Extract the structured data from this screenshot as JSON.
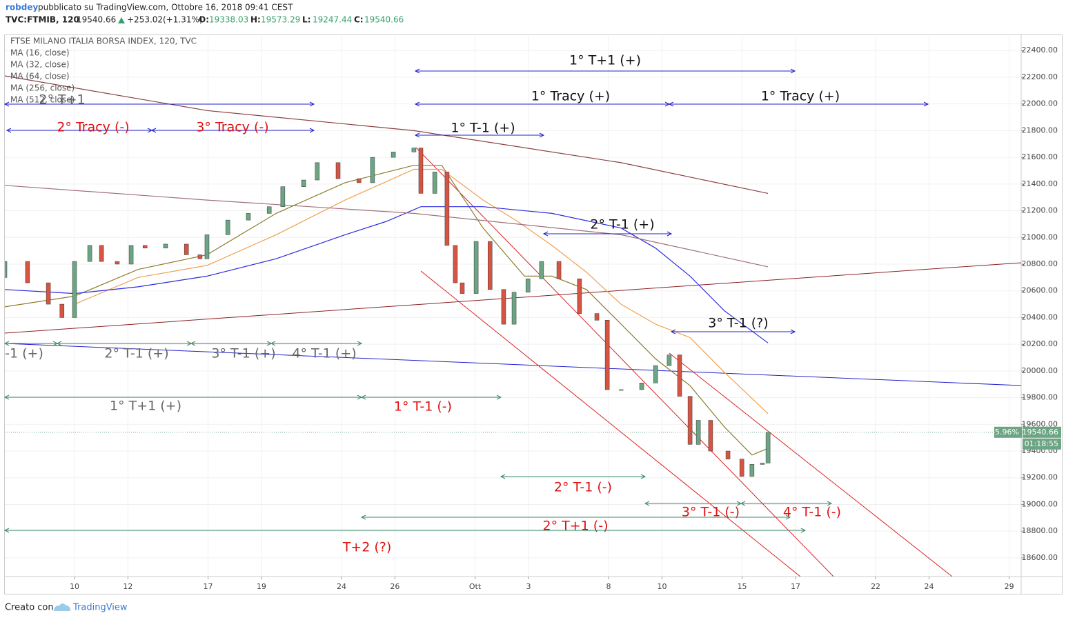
{
  "header": {
    "author": "robdey",
    "published": "pubblicato su TradingView.com, Ottobre 16, 2018 09:41 CEST",
    "symbol": "TVC:FTMIB, 120",
    "last": 19540.66,
    "change": "+253.02",
    "change_pct": "(+1.31%)",
    "ohlc": [
      {
        "label": "O:",
        "value": 19338.03
      },
      {
        "label": "H:",
        "value": 19573.29
      },
      {
        "label": "L:",
        "value": 19247.44
      },
      {
        "label": "C:",
        "value": 19540.66
      }
    ]
  },
  "chart_data": {
    "type": "candlestick",
    "title": "FTSE MILANO ITALIA BORSA INDEX, 120, TVC",
    "up_color": "#6ba583",
    "down_color": "#d75442",
    "xlim": [
      -2.61,
      35.45
    ],
    "ylim": [
      18460,
      22520
    ],
    "xticks": [
      {
        "value": 0,
        "label": "10"
      },
      {
        "value": 2,
        "label": "12"
      },
      {
        "value": 5,
        "label": "17"
      },
      {
        "value": 7,
        "label": "19"
      },
      {
        "value": 10,
        "label": "24"
      },
      {
        "value": 12,
        "label": "26"
      },
      {
        "value": 15,
        "label": "Ott"
      },
      {
        "value": 17,
        "label": "3"
      },
      {
        "value": 20,
        "label": "8"
      },
      {
        "value": 22,
        "label": "10"
      },
      {
        "value": 25,
        "label": "15"
      },
      {
        "value": 27,
        "label": "17"
      },
      {
        "value": 30,
        "label": "22"
      },
      {
        "value": 32,
        "label": "24"
      },
      {
        "value": 35,
        "label": "29"
      }
    ],
    "yticks": [
      {
        "value": 18600,
        "label": "18600.00"
      },
      {
        "value": 18800,
        "label": "18800.00"
      },
      {
        "value": 19000,
        "label": "19000.00"
      },
      {
        "value": 19200,
        "label": "19200.00"
      },
      {
        "value": 19400,
        "label": "19400.00"
      },
      {
        "value": 19600,
        "label": "19600.00"
      },
      {
        "value": 19800,
        "label": "19800.00"
      },
      {
        "value": 20000,
        "label": "20000.00"
      },
      {
        "value": 20200,
        "label": "20200.00"
      },
      {
        "value": 20400,
        "label": "20400.00"
      },
      {
        "value": 20600,
        "label": "20600.00"
      },
      {
        "value": 20800,
        "label": "20800.00"
      },
      {
        "value": 21000,
        "label": "21000.00"
      },
      {
        "value": 21200,
        "label": "21200.00"
      },
      {
        "value": 21400,
        "label": "21400.00"
      },
      {
        "value": 21600,
        "label": "21600.00"
      },
      {
        "value": 21800,
        "label": "21800.00"
      },
      {
        "value": 22000,
        "label": "22000.00"
      },
      {
        "value": 22200,
        "label": "22200.00"
      },
      {
        "value": 22400,
        "label": "22400.00"
      }
    ],
    "grid": true,
    "candles": {
      "x": [
        -2.61,
        -1.76,
        -0.98,
        -0.47,
        0,
        0.57,
        1.01,
        1.6,
        2.12,
        2.64,
        3.41,
        4.19,
        4.7,
        4.96,
        5.74,
        6.51,
        7.29,
        7.8,
        8.58,
        9.09,
        9.87,
        10.65,
        11.16,
        11.94,
        12.71,
        12.97,
        13.49,
        13.95,
        14.26,
        14.52,
        15.04,
        15.56,
        16.07,
        16.46,
        16.98,
        17.49,
        18.14,
        18.91,
        19.56,
        19.95,
        20.47,
        21.24,
        21.76,
        22.27,
        22.66,
        23.05,
        23.36,
        23.82,
        24.47,
        24.99,
        25.37,
        25.76,
        25.97
      ],
      "open": [
        20700,
        20820,
        20660,
        20500,
        20400,
        20820,
        20940,
        20820,
        20800,
        20940,
        20920,
        20950,
        20870,
        20840,
        21020,
        21130,
        21180,
        21230,
        21380,
        21430,
        21560,
        21440,
        21410,
        21600,
        21640,
        21670,
        21330,
        21490,
        20940,
        20660,
        20580,
        20970,
        20610,
        20350,
        20590,
        20690,
        20820,
        20690,
        20430,
        20380,
        19860,
        19860,
        19910,
        20040,
        20120,
        19810,
        19450,
        19630,
        19400,
        19340,
        19210,
        19300,
        19310
      ],
      "close": [
        20820,
        20660,
        20500,
        20400,
        20820,
        20940,
        20820,
        20800,
        20940,
        20920,
        20950,
        20870,
        20840,
        21020,
        21130,
        21180,
        21230,
        21380,
        21430,
        21560,
        21440,
        21410,
        21600,
        21640,
        21670,
        21330,
        21490,
        20940,
        20660,
        20580,
        20970,
        20610,
        20350,
        20590,
        20690,
        20820,
        20690,
        20430,
        20380,
        19860,
        19860,
        19910,
        20040,
        20120,
        19810,
        19450,
        19630,
        19400,
        19340,
        19210,
        19300,
        19310,
        19540.66
      ]
    },
    "series": [
      {
        "name": "MA (16, close)",
        "color": "#8b7d2a",
        "x": [
          -2.61,
          0,
          2.38,
          4.96,
          7.55,
          10.13,
          12.71,
          13.75,
          15.3,
          16.85,
          17.88,
          19.17,
          20.47,
          21.76,
          23.05,
          24.34,
          25.37,
          25.97
        ],
        "values": [
          20480,
          20560,
          20760,
          20870,
          21180,
          21410,
          21540,
          21540,
          21070,
          20710,
          20710,
          20610,
          20350,
          20090,
          19890,
          19580,
          19370,
          19420
        ]
      },
      {
        "name": "MA (32, close)",
        "color": "#f0a050",
        "x": [
          0,
          2.38,
          4.96,
          7.55,
          10.13,
          12.71,
          13.75,
          15.3,
          16.59,
          17.88,
          19.17,
          20.47,
          21.76,
          23.05,
          24.34,
          25.97
        ],
        "values": [
          20500,
          20700,
          20790,
          21020,
          21280,
          21510,
          21510,
          21280,
          21120,
          20940,
          20740,
          20500,
          20350,
          20250,
          19990,
          19680
        ]
      },
      {
        "name": "MA (64, close)",
        "color": "#2a2ae0",
        "x": [
          -2.61,
          0,
          2.38,
          4.96,
          7.55,
          10.13,
          11.68,
          12.97,
          14.01,
          15.3,
          17.88,
          20.47,
          21.76,
          23.05,
          24.34,
          25.97
        ],
        "values": [
          20610,
          20580,
          20630,
          20710,
          20840,
          21020,
          21120,
          21230,
          21230,
          21230,
          21180,
          21070,
          20920,
          20710,
          20450,
          20210
        ]
      },
      {
        "name": "MA (256, close)",
        "color": "#a0707a",
        "x": [
          -2.61,
          4.96,
          12.71,
          20.47,
          25.97
        ],
        "values": [
          21390,
          21280,
          21180,
          21020,
          20780
        ]
      },
      {
        "name": "MA (512, close)",
        "color": "#8b4040",
        "x": [
          -2.61,
          4.96,
          12.71,
          20.47,
          25.97
        ],
        "values": [
          22210,
          21950,
          21800,
          21560,
          21330
        ]
      }
    ],
    "last_price": 19540.66,
    "last_change": "-5.96%",
    "countdown": "01:18:55",
    "annotations": [
      "1° T+1 (+)",
      "1° Tracy (+)",
      "1° Tracy (+)",
      "2° T+1",
      "2° Tracy (-)",
      "3° Tracy (-)",
      "1° T-1 (+)",
      "2° T-1 (+)",
      "3° T-1 (?)",
      "-1 (+)",
      "2° T-1 (+)",
      "3° T-1 (+)",
      "4° T-1 (+)",
      "1° T+1 (+)",
      "1° T-1 (-)",
      "2° T-1 (-)",
      "3° T-1 (-)",
      "4° T-1 (-)",
      "2° T+1 (-)",
      "T+2 (?)"
    ]
  },
  "footer": {
    "made_with": "Creato con",
    "brand": "TradingView"
  }
}
